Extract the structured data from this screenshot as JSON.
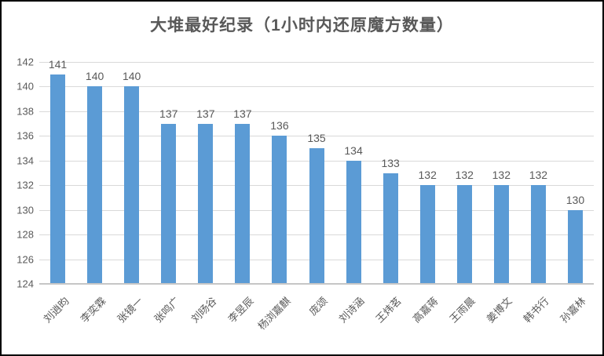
{
  "window": {
    "background": "#ffffff",
    "border_color": "#000000"
  },
  "chart_data": {
    "type": "bar",
    "title": "大堆最好纪录（1小时内还原魔方数量）",
    "categories": [
      "刘逍昀",
      "李奕霖",
      "张镜一",
      "张鸣广",
      "刘旸谷",
      "李昱辰",
      "杨浏嘉麒",
      "庞颂",
      "刘诗涵",
      "王炜茗",
      "高嘉蒋",
      "王雨晨",
      "姜博文",
      "韩书行",
      "孙嘉林"
    ],
    "values": [
      141,
      140,
      140,
      137,
      137,
      137,
      136,
      135,
      134,
      133,
      132,
      132,
      132,
      132,
      130
    ],
    "data_labels_shown": true,
    "xlabel": "",
    "ylabel": "",
    "ylim": [
      124,
      142
    ],
    "ytick_step": 2,
    "ytick_labels": [
      "124",
      "126",
      "128",
      "130",
      "132",
      "134",
      "136",
      "138",
      "140",
      "142"
    ],
    "grid": true,
    "legend_position": "none",
    "x_label_rotation_deg": 45,
    "bar_color": "#5b9bd5",
    "gridline_color": "#d9d9d9",
    "axis_line_color": "#c6c6c6",
    "text_color": "#595959"
  }
}
